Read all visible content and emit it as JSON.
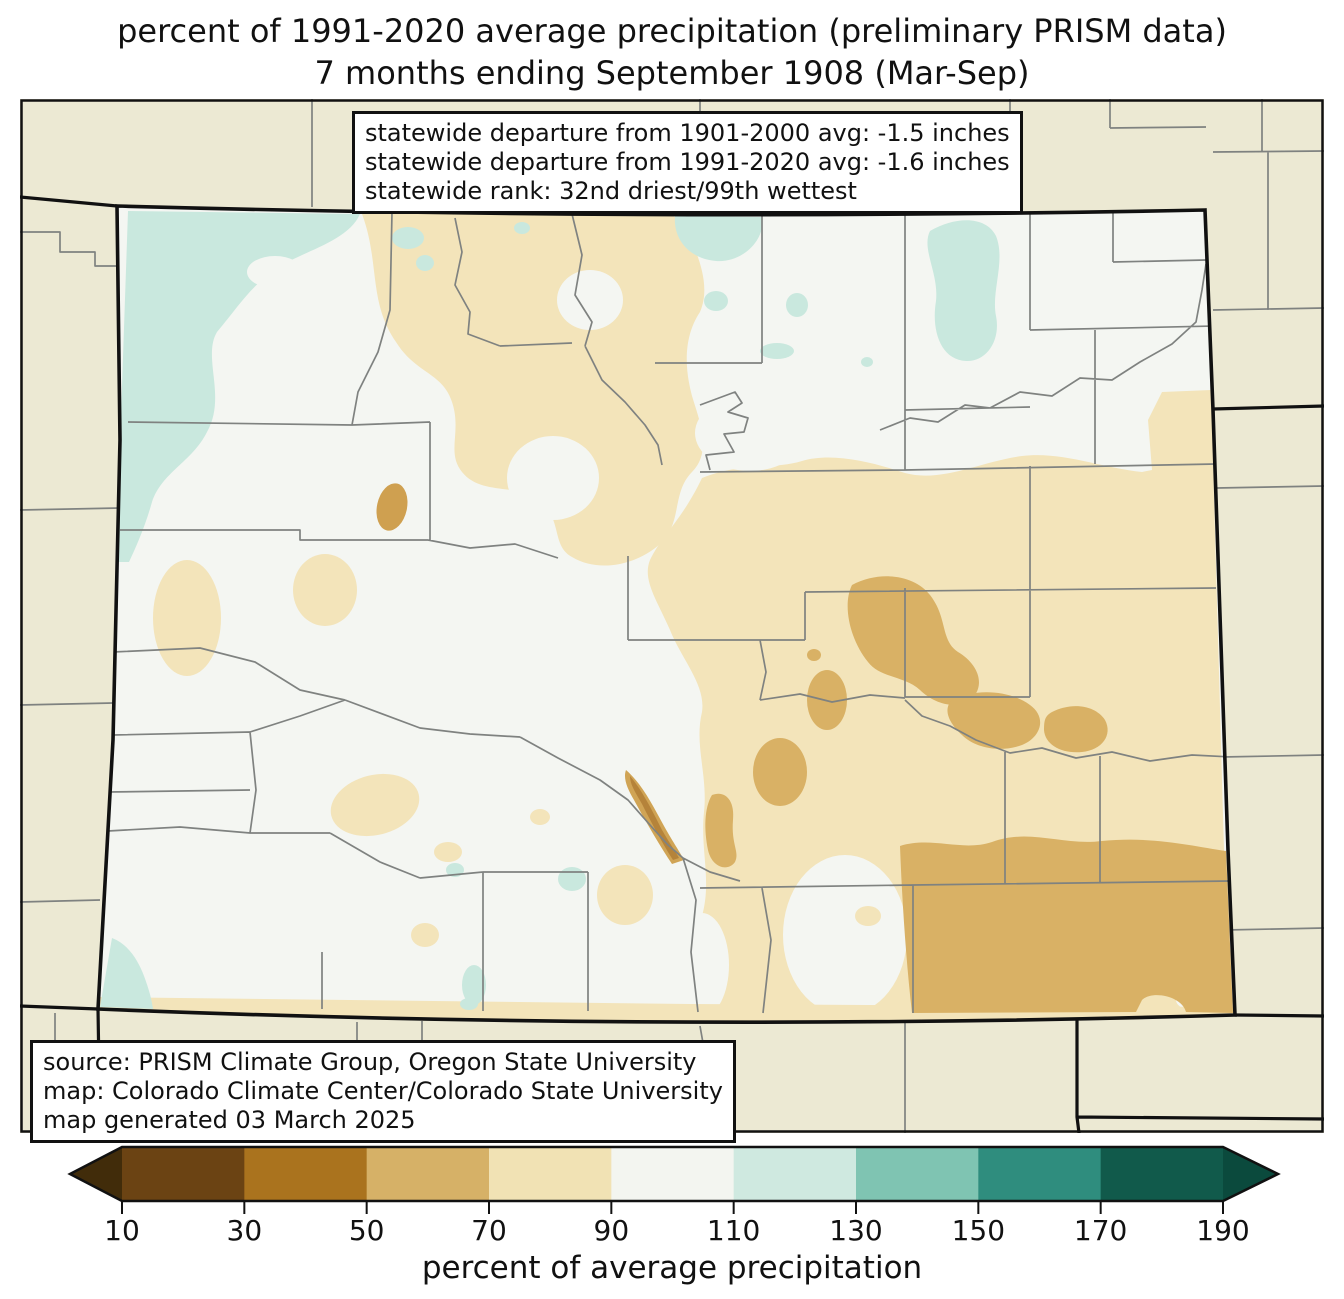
{
  "title": {
    "line1": "percent of 1991-2020 average precipitation (preliminary PRISM data)",
    "line2": "7 months ending September 1908 (Mar-Sep)"
  },
  "stats_box": {
    "lines": [
      "statewide departure from 1901-2000 avg: -1.5 inches",
      "statewide departure from 1991-2020 avg: -1.6 inches",
      "statewide rank: 32nd driest/99th wettest"
    ]
  },
  "source_box": {
    "lines": [
      "source: PRISM Climate Group, Oregon State University",
      "map: Colorado Climate Center/Colorado State University",
      "map generated 03 March 2025"
    ]
  },
  "map": {
    "region": "Colorado",
    "palette": {
      "outside_state": "#ece9d3",
      "class_90_110": "#f4f6f2",
      "class_70_90": "#f3e4ba",
      "class_50_70": "#d9b165",
      "dark_tan_spot": "#cfa050",
      "streak_halo": "#d0a455",
      "streak_core": "#b5833a",
      "class_110_130": "#c9e8de",
      "county_line": "#7f8280",
      "state_border": "#111111"
    }
  },
  "colorbar": {
    "axis_label": "percent of average precipitation",
    "tick_labels": [
      "10",
      "30",
      "50",
      "70",
      "90",
      "110",
      "130",
      "150",
      "170",
      "190"
    ],
    "segments": [
      {
        "range": "10-30",
        "color": "#6b4313"
      },
      {
        "range": "30-50",
        "color": "#aa731e"
      },
      {
        "range": "50-70",
        "color": "#d6b167"
      },
      {
        "range": "70-90",
        "color": "#f1e2b4"
      },
      {
        "range": "90-110",
        "color": "#f3f5f0"
      },
      {
        "range": "110-130",
        "color": "#cfe9e0"
      },
      {
        "range": "130-150",
        "color": "#7fc4b2"
      },
      {
        "range": "150-170",
        "color": "#2f8d7e"
      },
      {
        "range": "170-190",
        "color": "#115a4b"
      }
    ],
    "under_arrow_color": "#412c0a",
    "over_arrow_color": "#0b4a3d"
  }
}
